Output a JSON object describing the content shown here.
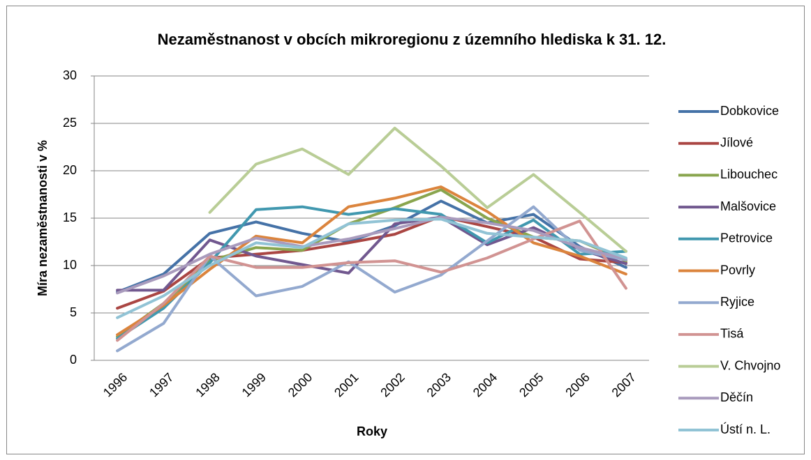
{
  "chart_data": {
    "type": "line",
    "title": "Nezaměstnanost v obcích mikroregionu z územního hlediska k 31. 12.",
    "x_label": "Roky",
    "y_label": "Míra nezaměstnanosti v %",
    "categories": [
      "1996",
      "1997",
      "1998",
      "1999",
      "2000",
      "2001",
      "2002",
      "2003",
      "2004",
      "2005",
      "2006",
      "2007"
    ],
    "ylim": [
      0,
      30
    ],
    "yticks": [
      0,
      5,
      10,
      15,
      20,
      25,
      30
    ],
    "grid": true,
    "legend": "right",
    "series": [
      {
        "name": "Dobkovice",
        "color": "#4572a7",
        "values": [
          7.2,
          9.1,
          13.4,
          14.6,
          13.4,
          12.5,
          14.2,
          16.8,
          14.5,
          15.4,
          12.0,
          9.8
        ]
      },
      {
        "name": "Jílové",
        "color": "#aa4643",
        "values": [
          5.5,
          7.3,
          10.8,
          11.2,
          11.6,
          12.4,
          13.3,
          15.2,
          14.1,
          13.0,
          10.7,
          10.3
        ]
      },
      {
        "name": "Libouchec",
        "color": "#89a54e",
        "values": [
          2.5,
          6.0,
          10.5,
          11.9,
          11.6,
          14.4,
          16.1,
          18.0,
          15.0,
          13.0,
          12.6,
          10.5
        ]
      },
      {
        "name": "Malšovice",
        "color": "#71588f",
        "values": [
          7.4,
          7.4,
          12.7,
          11.0,
          10.1,
          9.2,
          14.4,
          15.1,
          12.2,
          14.0,
          11.7,
          10.2
        ]
      },
      {
        "name": "Petrovice",
        "color": "#4198af",
        "values": [
          2.3,
          5.5,
          10.3,
          15.9,
          16.2,
          15.4,
          16.0,
          15.4,
          12.4,
          14.8,
          11.2,
          11.5
        ]
      },
      {
        "name": "Povrly",
        "color": "#db843d",
        "values": [
          2.7,
          5.8,
          9.6,
          13.1,
          12.4,
          16.2,
          17.1,
          18.3,
          15.7,
          12.4,
          11.0,
          9.1
        ]
      },
      {
        "name": "Ryjice",
        "color": "#93a9cf",
        "values": [
          1.0,
          3.9,
          11.0,
          6.8,
          7.8,
          10.4,
          7.2,
          9.0,
          12.6,
          16.2,
          11.6,
          10.6
        ]
      },
      {
        "name": "Tisá",
        "color": "#d19392",
        "values": [
          2.1,
          6.0,
          11.0,
          9.8,
          9.8,
          10.3,
          10.5,
          9.3,
          10.8,
          12.8,
          14.7,
          7.6
        ]
      },
      {
        "name": "V. Chvojno",
        "color": "#b9cd96",
        "values": [
          null,
          null,
          15.6,
          20.7,
          22.3,
          19.6,
          24.5,
          20.5,
          16.1,
          19.6,
          15.6,
          11.5
        ]
      },
      {
        "name": "Děčín",
        "color": "#a99bbd",
        "values": [
          7.1,
          8.9,
          11.2,
          12.9,
          12.0,
          12.8,
          13.9,
          15.1,
          14.5,
          13.7,
          11.9,
          10.7
        ]
      },
      {
        "name": "Ústí n. L.",
        "color": "#91c3d5",
        "values": [
          4.5,
          6.8,
          10.0,
          12.4,
          11.9,
          14.4,
          14.8,
          14.9,
          13.4,
          13.0,
          12.6,
          10.8
        ]
      }
    ]
  }
}
